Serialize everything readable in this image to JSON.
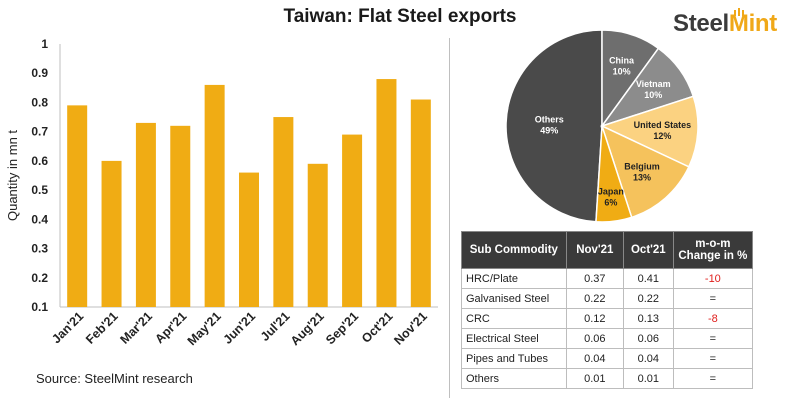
{
  "header": {
    "title": "Taiwan: Flat Steel exports",
    "logo_main": "Steel",
    "logo_accent": "Mint"
  },
  "source": "Source:  SteelMint research",
  "colors": {
    "bar": "#f0ac14",
    "pie": [
      "#4a4a4a",
      "#6e6e6e",
      "#8c8c8c",
      "#fbd281",
      "#f5c25c",
      "#f0ac14"
    ]
  },
  "chart_data": [
    {
      "type": "bar",
      "title": "",
      "ylabel": "Quantity in mn t",
      "xlabel": "",
      "ylim": [
        0.1,
        1
      ],
      "yticks": [
        "0.1",
        "0.2",
        "0.3",
        "0.4",
        "0.5",
        "0.6",
        "0.7",
        "0.8",
        "0.9",
        "1"
      ],
      "categories": [
        "Jan'21",
        "Feb'21",
        "Mar'21",
        "Apr'21",
        "May'21",
        "Jun'21",
        "Jul'21",
        "Aug'21",
        "Sep'21",
        "Oct'21",
        "Nov'21"
      ],
      "values": [
        0.79,
        0.6,
        0.73,
        0.72,
        0.86,
        0.56,
        0.75,
        0.59,
        0.69,
        0.88,
        0.81
      ],
      "grid": false
    },
    {
      "type": "pie",
      "slices": [
        {
          "label": "Others",
          "pct_label": "49%",
          "value": 49
        },
        {
          "label": "China",
          "pct_label": "10%",
          "value": 10
        },
        {
          "label": "Vietnam",
          "pct_label": "10%",
          "value": 10
        },
        {
          "label": "United States",
          "pct_label": "12%",
          "value": 12
        },
        {
          "label": "Belgium",
          "pct_label": "13%",
          "value": 13
        },
        {
          "label": "Japan",
          "pct_label": "6%",
          "value": 6
        }
      ]
    },
    {
      "type": "table",
      "headers": [
        "Sub Commodity",
        "Nov'21",
        "Oct'21",
        "m-o-m",
        "Change in %"
      ],
      "rows": [
        {
          "name": "HRC/Plate",
          "nov": "0.37",
          "oct": "0.41",
          "change": "-10",
          "negative": true
        },
        {
          "name": "Galvanised Steel",
          "nov": "0.22",
          "oct": "0.22",
          "change": "=",
          "negative": false
        },
        {
          "name": "CRC",
          "nov": "0.12",
          "oct": "0.13",
          "change": "-8",
          "negative": true
        },
        {
          "name": "Electrical Steel",
          "nov": "0.06",
          "oct": "0.06",
          "change": "=",
          "negative": false
        },
        {
          "name": "Pipes and Tubes",
          "nov": "0.04",
          "oct": "0.04",
          "change": "=",
          "negative": false
        },
        {
          "name": "Others",
          "nov": "0.01",
          "oct": "0.01",
          "change": "=",
          "negative": false
        }
      ]
    }
  ]
}
